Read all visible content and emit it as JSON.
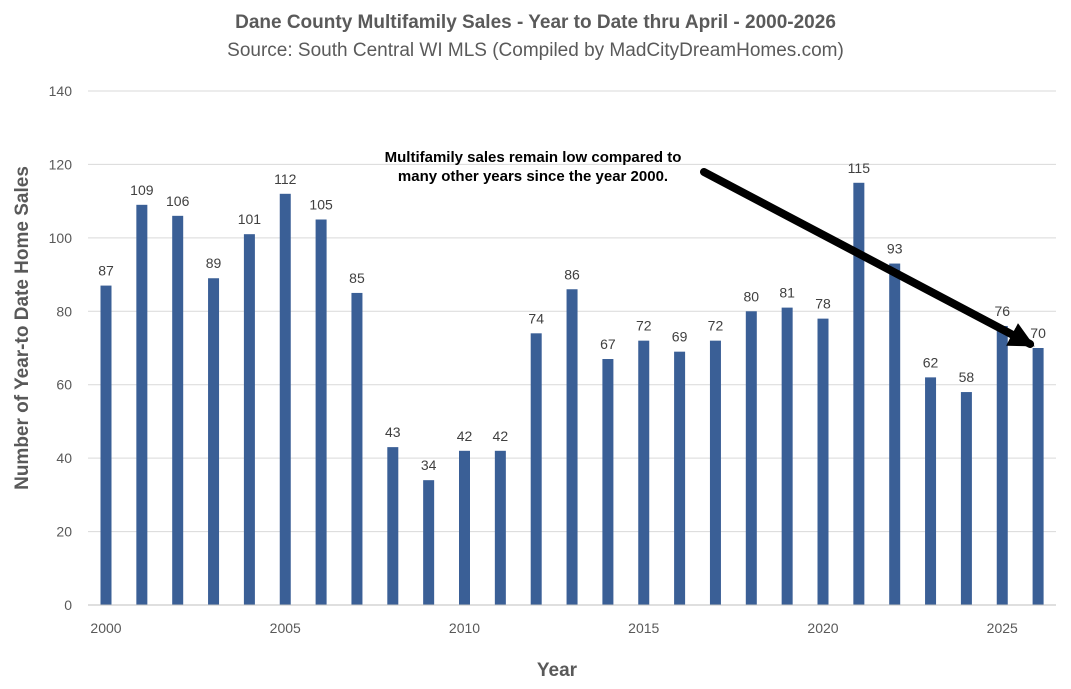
{
  "chart_data": {
    "type": "bar",
    "title": "Dane County Multifamily Sales - Year to Date thru April - 2000-2026",
    "subtitle": "Source: South Central WI MLS (Compiled by MadCityDreamHomes.com)",
    "xlabel": "Year",
    "ylabel": "Number of Year-to Date Home Sales",
    "ylim": [
      0,
      140
    ],
    "yticks": [
      0,
      20,
      40,
      60,
      80,
      100,
      120,
      140
    ],
    "xtick_labels": [
      "2000",
      "2005",
      "2010",
      "2015",
      "2020",
      "2025"
    ],
    "grid": true,
    "bar_color": "#3a5f96",
    "categories": [
      2000,
      2001,
      2002,
      2003,
      2004,
      2005,
      2006,
      2007,
      2008,
      2009,
      2010,
      2011,
      2012,
      2013,
      2014,
      2015,
      2016,
      2017,
      2018,
      2019,
      2020,
      2021,
      2022,
      2023,
      2024,
      2025,
      2026
    ],
    "values": [
      87,
      109,
      106,
      89,
      101,
      112,
      105,
      85,
      43,
      34,
      42,
      42,
      74,
      86,
      67,
      72,
      69,
      72,
      80,
      81,
      78,
      115,
      93,
      62,
      58,
      76,
      70
    ],
    "annotation": {
      "line1": "Multifamily sales remain low compared to",
      "line2": "many other years since the year 2000.",
      "points_to": 2026
    }
  }
}
